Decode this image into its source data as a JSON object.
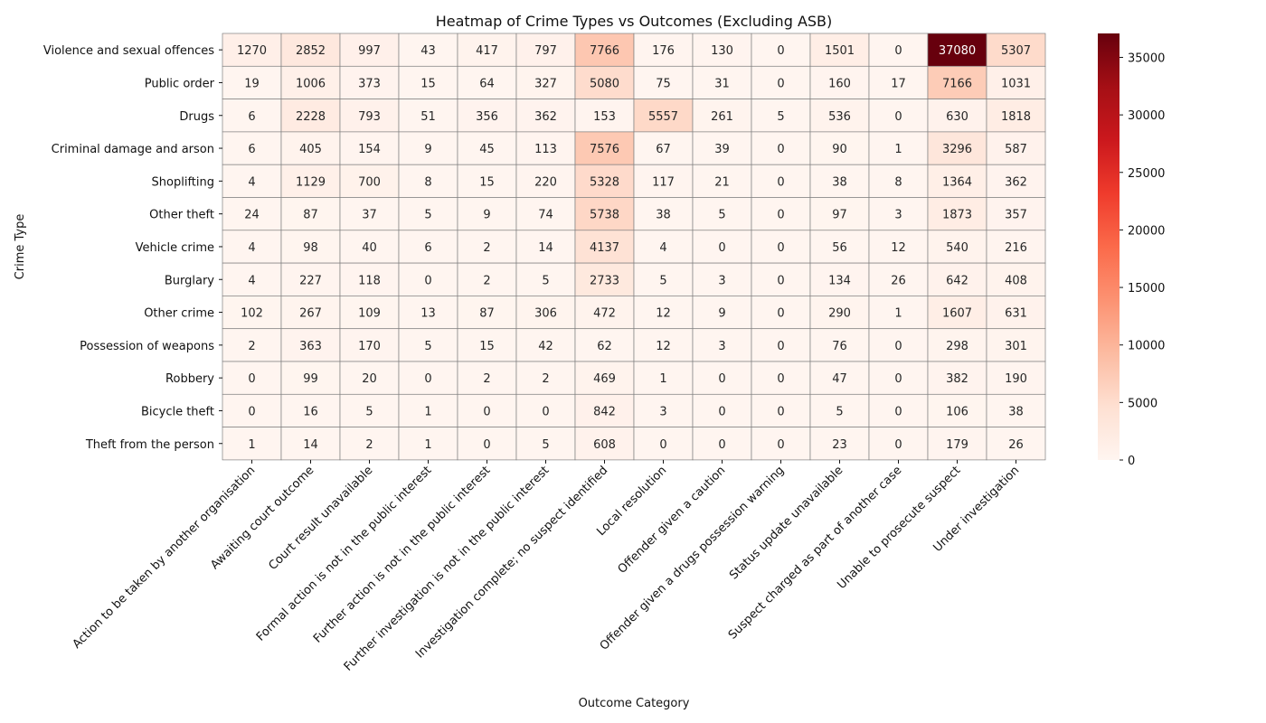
{
  "chart_data": {
    "type": "heatmap",
    "title": "Heatmap of Crime Types vs Outcomes (Excluding ASB)",
    "xlabel": "Outcome Category",
    "ylabel": "Crime Type",
    "rows": [
      "Violence and sexual offences",
      "Public order",
      "Drugs",
      "Criminal damage and arson",
      "Shoplifting",
      "Other theft",
      "Vehicle crime",
      "Burglary",
      "Other crime",
      "Possession of weapons",
      "Robbery",
      "Bicycle theft",
      "Theft from the person"
    ],
    "columns": [
      "Action to be taken by another organisation",
      "Awaiting court outcome",
      "Court result unavailable",
      "Formal action is not in the public interest",
      "Further action is not in the public interest",
      "Further investigation is not in the public interest",
      "Investigation complete; no suspect identified",
      "Local resolution",
      "Offender given a caution",
      "Offender given a drugs possession warning",
      "Status update unavailable",
      "Suspect charged as part of another case",
      "Unable to prosecute suspect",
      "Under investigation"
    ],
    "values": [
      [
        1270,
        2852,
        997,
        43,
        417,
        797,
        7766,
        176,
        130,
        0,
        1501,
        0,
        37080,
        5307
      ],
      [
        19,
        1006,
        373,
        15,
        64,
        327,
        5080,
        75,
        31,
        0,
        160,
        17,
        7166,
        1031
      ],
      [
        6,
        2228,
        793,
        51,
        356,
        362,
        153,
        5557,
        261,
        5,
        536,
        0,
        630,
        1818
      ],
      [
        6,
        405,
        154,
        9,
        45,
        113,
        7576,
        67,
        39,
        0,
        90,
        1,
        3296,
        587
      ],
      [
        4,
        1129,
        700,
        8,
        15,
        220,
        5328,
        117,
        21,
        0,
        38,
        8,
        1364,
        362
      ],
      [
        24,
        87,
        37,
        5,
        9,
        74,
        5738,
        38,
        5,
        0,
        97,
        3,
        1873,
        357
      ],
      [
        4,
        98,
        40,
        6,
        2,
        14,
        4137,
        4,
        0,
        0,
        56,
        12,
        540,
        216
      ],
      [
        4,
        227,
        118,
        0,
        2,
        5,
        2733,
        5,
        3,
        0,
        134,
        26,
        642,
        408
      ],
      [
        102,
        267,
        109,
        13,
        87,
        306,
        472,
        12,
        9,
        0,
        290,
        1,
        1607,
        631
      ],
      [
        2,
        363,
        170,
        5,
        15,
        42,
        62,
        12,
        3,
        0,
        76,
        0,
        298,
        301
      ],
      [
        0,
        99,
        20,
        0,
        2,
        2,
        469,
        1,
        0,
        0,
        47,
        0,
        382,
        190
      ],
      [
        0,
        16,
        5,
        1,
        0,
        0,
        842,
        3,
        0,
        0,
        5,
        0,
        106,
        38
      ],
      [
        1,
        14,
        2,
        1,
        0,
        5,
        608,
        0,
        0,
        0,
        23,
        0,
        179,
        26
      ]
    ],
    "colorbar": {
      "min": 0,
      "max": 37080,
      "ticks": [
        0,
        5000,
        10000,
        15000,
        20000,
        25000,
        30000,
        35000
      ],
      "colormap": "Reds"
    },
    "grid": "cell borders gray",
    "legend": "colorbar right"
  }
}
